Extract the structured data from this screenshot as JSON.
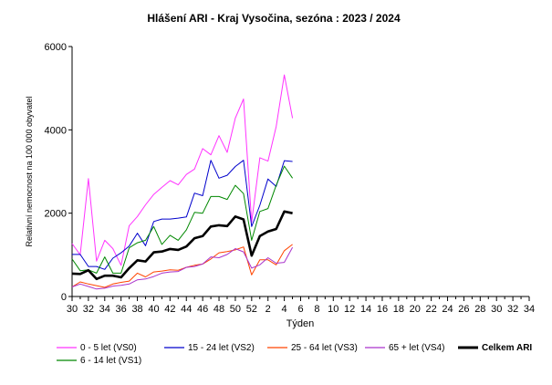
{
  "chart_data": {
    "type": "line",
    "title": "Hlášení ARI   -    Kraj Vysočina, sezóna : 2023 / 2024",
    "xlabel": "Týden",
    "ylabel": "Relativní nemocnost na 100 000 obyvatel",
    "ylim": [
      0,
      6000
    ],
    "yticks": [
      "0",
      "2000",
      "4000",
      "6000"
    ],
    "grid": false,
    "legend_position": "bottom",
    "x_weeks": [
      30,
      31,
      32,
      33,
      34,
      35,
      36,
      37,
      38,
      39,
      40,
      41,
      42,
      43,
      44,
      45,
      46,
      47,
      48,
      49,
      50,
      51,
      52,
      1,
      2,
      3,
      4,
      5
    ],
    "x_tick_labels": [
      "30",
      "32",
      "34",
      "36",
      "38",
      "40",
      "42",
      "44",
      "46",
      "48",
      "50",
      "52",
      "2",
      "4",
      "6",
      "8",
      "10",
      "12",
      "14",
      "16",
      "18",
      "20",
      "22",
      "24",
      "26",
      "28",
      "30",
      "32",
      "34"
    ],
    "series": [
      {
        "name": "0 - 5 let (VS0)",
        "color": "#ff33ff",
        "width": 1,
        "values": [
          1270,
          1000,
          2830,
          850,
          1350,
          1150,
          750,
          1700,
          1920,
          2200,
          2450,
          2620,
          2780,
          2680,
          2930,
          3060,
          3550,
          3400,
          3860,
          3460,
          4280,
          4740,
          1780,
          3330,
          3250,
          4080,
          5320,
          4280
        ]
      },
      {
        "name": "15 - 24 let (VS2)",
        "color": "#0000cc",
        "width": 1,
        "values": [
          1010,
          1010,
          720,
          720,
          650,
          920,
          1050,
          1210,
          1520,
          1220,
          1800,
          1860,
          1860,
          1880,
          1910,
          2480,
          2420,
          3270,
          2840,
          2910,
          3120,
          3270,
          1680,
          2190,
          2820,
          2640,
          3260,
          3240
        ]
      },
      {
        "name": "25 - 64 let (VS3)",
        "color": "#ff4400",
        "width": 1,
        "values": [
          230,
          350,
          300,
          260,
          220,
          300,
          340,
          370,
          560,
          470,
          590,
          610,
          640,
          630,
          700,
          750,
          780,
          900,
          1050,
          1080,
          1120,
          1190,
          520,
          880,
          880,
          760,
          1100,
          1250
        ]
      },
      {
        "name": "65 + let (VS4)",
        "color": "#aa33cc",
        "width": 1,
        "values": [
          230,
          300,
          240,
          180,
          200,
          250,
          270,
          300,
          400,
          420,
          480,
          560,
          590,
          600,
          700,
          720,
          780,
          950,
          930,
          1010,
          1150,
          1070,
          680,
          760,
          930,
          800,
          820,
          1180
        ]
      },
      {
        "name": "Celkem ARI",
        "color": "#000000",
        "width": 2.6,
        "values": [
          550,
          540,
          630,
          420,
          500,
          500,
          460,
          680,
          870,
          840,
          1060,
          1080,
          1140,
          1120,
          1200,
          1400,
          1450,
          1680,
          1710,
          1690,
          1920,
          1850,
          980,
          1450,
          1560,
          1620,
          2040,
          2000
        ]
      },
      {
        "name": "6 - 14 let (VS1)",
        "color": "#008800",
        "width": 1,
        "values": [
          900,
          620,
          640,
          560,
          950,
          560,
          560,
          1170,
          1290,
          1350,
          1680,
          1250,
          1470,
          1350,
          1600,
          2020,
          2000,
          2400,
          2400,
          2330,
          2670,
          2470,
          1350,
          2040,
          2110,
          2670,
          3130,
          2840
        ]
      }
    ]
  }
}
